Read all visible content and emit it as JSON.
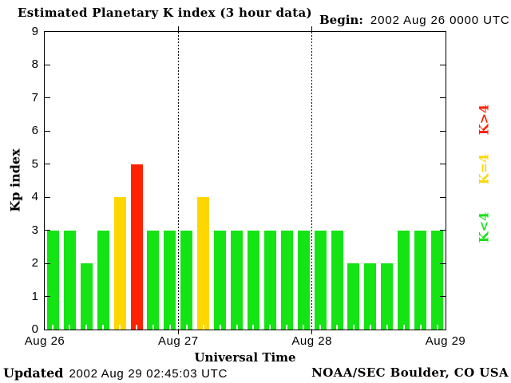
{
  "header": {
    "title": "Estimated Planetary K index (3 hour data)",
    "begin_label": "Begin:",
    "begin_value": "2002 Aug 26 0000 UTC"
  },
  "axes": {
    "ylabel": "Kp index",
    "xlabel": "Universal Time"
  },
  "legend": {
    "position": "right",
    "items": [
      {
        "label": "K>4",
        "color": "#ff2200"
      },
      {
        "label": "K=4",
        "color": "#ffd700"
      },
      {
        "label": "K<4",
        "color": "#14e414"
      }
    ]
  },
  "footer": {
    "updated_label": "Updated",
    "updated_value": "2002 Aug 29 02:45:03 UTC",
    "credit": "NOAA/SEC Boulder, CO USA"
  },
  "chart_data": {
    "type": "bar",
    "title": "Estimated Planetary K index (3 hour data)",
    "xlabel": "Universal Time",
    "ylabel": "Kp index",
    "begin": "2002 Aug 26 0000 UTC",
    "bin_hours": 3,
    "ylim": [
      0,
      9
    ],
    "y_ticks": [
      0,
      1,
      2,
      3,
      4,
      5,
      6,
      7,
      8,
      9
    ],
    "x_tick_labels": [
      "Aug 26",
      "Aug 27",
      "Aug 28",
      "Aug 29"
    ],
    "values": [
      3,
      3,
      2,
      3,
      4,
      5,
      3,
      3,
      3,
      4,
      3,
      3,
      3,
      3,
      3,
      3,
      3,
      3,
      2,
      2,
      2,
      3,
      3,
      3
    ],
    "day_boundaries_dotted": [
      8,
      16
    ],
    "color_rules": {
      "below_4": "#14e414",
      "equal_4": "#ffd700",
      "above_4": "#ff2200"
    },
    "grid": false,
    "legend_position": "right"
  }
}
